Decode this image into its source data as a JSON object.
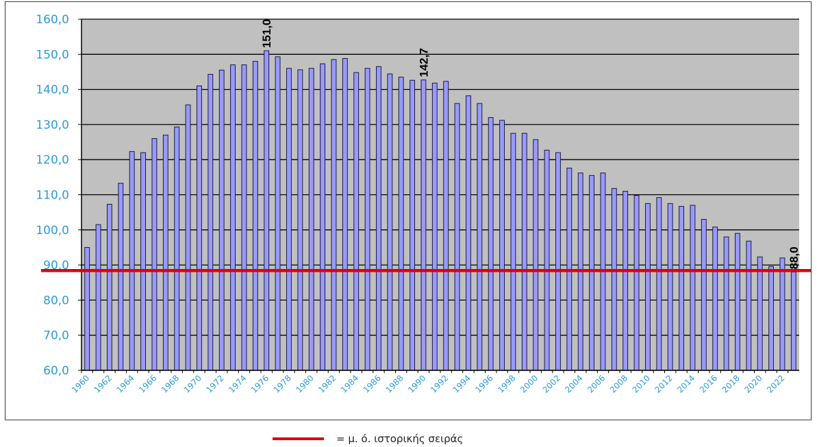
{
  "chart_data": {
    "type": "bar",
    "title": "",
    "xlabel": "",
    "ylabel": "",
    "ylim": [
      60,
      160
    ],
    "yticks": [
      "60,0",
      "70,0",
      "80,0",
      "90,0",
      "100,0",
      "110,0",
      "120,0",
      "130,0",
      "140,0",
      "150,0",
      "160,0"
    ],
    "grid": true,
    "categories": [
      "1960",
      "1961",
      "1962",
      "1963",
      "1964",
      "1965",
      "1966",
      "1967",
      "1968",
      "1969",
      "1970",
      "1971",
      "1972",
      "1973",
      "1974",
      "1975",
      "1976",
      "1977",
      "1978",
      "1979",
      "1980",
      "1981",
      "1982",
      "1983",
      "1984",
      "1985",
      "1986",
      "1987",
      "1988",
      "1989",
      "1990",
      "1991",
      "1992",
      "1993",
      "1994",
      "1995",
      "1996",
      "1997",
      "1998",
      "1999",
      "2000",
      "2001",
      "2002",
      "2003",
      "2004",
      "2005",
      "2006",
      "2007",
      "2008",
      "2009",
      "2010",
      "2011",
      "2012",
      "2013",
      "2014",
      "2015",
      "2016",
      "2017",
      "2018",
      "2019",
      "2020",
      "2021",
      "2022",
      "2023"
    ],
    "xtick_labels": [
      "1960",
      "1962",
      "1964",
      "1966",
      "1968",
      "1970",
      "1972",
      "1974",
      "1976",
      "1978",
      "1980",
      "1982",
      "1984",
      "1986",
      "1988",
      "1990",
      "1992",
      "1994",
      "1996",
      "1998",
      "2000",
      "2002",
      "2004",
      "2006",
      "2008",
      "2010",
      "2012",
      "2014",
      "2016",
      "2018",
      "2020",
      "2022"
    ],
    "series": [
      {
        "values": [
          95.0,
          101.5,
          107.3,
          113.3,
          122.3,
          122.0,
          126.0,
          127.0,
          129.3,
          135.6,
          141.0,
          144.3,
          145.5,
          147.0,
          147.0,
          148.0,
          151.0,
          149.3,
          146.0,
          145.6,
          146.0,
          147.3,
          148.5,
          148.8,
          144.8,
          146.0,
          146.5,
          144.4,
          143.5,
          142.6,
          142.7,
          141.8,
          142.3,
          136.0,
          138.2,
          136.0,
          132.0,
          131.2,
          127.5,
          127.5,
          125.7,
          122.7,
          122.0,
          117.6,
          116.2,
          115.5,
          116.2,
          111.8,
          111.0,
          109.8,
          107.5,
          109.2,
          107.5,
          106.7,
          107.0,
          103.0,
          100.8,
          98.0,
          99.0,
          96.8,
          92.3,
          89.6,
          92.0,
          88.0
        ]
      }
    ],
    "annotations": [
      {
        "category": "1976",
        "text": "151,0"
      },
      {
        "category": "1990",
        "text": "142,7"
      },
      {
        "category": "2023",
        "text": "88,0"
      }
    ],
    "reference_line": {
      "value": 88.4,
      "label": "= μ. ό. ιστορικής σειράς"
    },
    "legend": "bottom",
    "colors": {
      "bar_fill": "#9999ff",
      "bar_stroke": "#1a1a3a",
      "plot_bg": "#c0c0c0",
      "grid": "#000000",
      "tick_label": "#2e9ad6",
      "annotation": "#000000",
      "reference_line": "#e00000"
    }
  }
}
